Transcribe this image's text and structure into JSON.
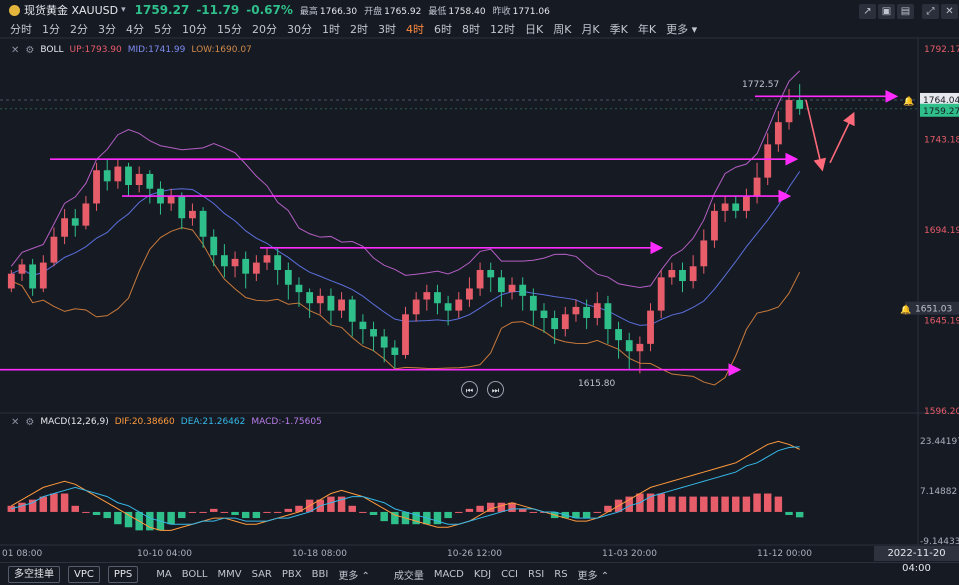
{
  "header": {
    "name": "现货黄金 XAUUSD",
    "price": "1759.27",
    "change": "-11.79",
    "change_pct": "-0.67%",
    "high_label": "最高",
    "high": "1766.30",
    "open_label": "开盘",
    "open": "1765.92",
    "low_label": "最低",
    "low": "1758.40",
    "prev_label": "昨收",
    "prev": "1771.06"
  },
  "timeframes": [
    "分时",
    "1分",
    "2分",
    "3分",
    "4分",
    "5分",
    "10分",
    "15分",
    "20分",
    "30分",
    "1时",
    "2时",
    "3时",
    "4时",
    "6时",
    "8时",
    "12时",
    "日K",
    "周K",
    "月K",
    "季K",
    "年K",
    "更多"
  ],
  "active_timeframe": "4时",
  "boll": {
    "label": "BOLL",
    "up": "UP:1793.90",
    "mid": "MID:1741.99",
    "low": "LOW:1690.07"
  },
  "macd": {
    "label": "MACD(12,26,9)",
    "dif": "DIF:20.38660",
    "dea": "DEA:21.26462",
    "macd": "MACD:-1.75605"
  },
  "main_axis": [
    "1792.17",
    "1743.18",
    "1694.19",
    "1645.19",
    "1596.20"
  ],
  "macd_axis": [
    "23.44197",
    "7.14882",
    "-9.14433"
  ],
  "price_tags": {
    "current": "1759.27",
    "line": "1764.04",
    "alert": "1651.03"
  },
  "annotations": {
    "high": "1772.57",
    "low": "1615.80"
  },
  "time_labels": [
    "01 08:00",
    "10-10 04:00",
    "10-18 08:00",
    "10-26 12:00",
    "11-03 20:00",
    "11-12 00:00"
  ],
  "crosshair_date": "2022-11-20 04:00",
  "bottom": {
    "buttons": [
      "多空挂单",
      "VPC",
      "PPS"
    ],
    "main_tabs": [
      "MA",
      "BOLL",
      "MMV",
      "SAR",
      "PBX",
      "BBI",
      "更多"
    ],
    "sub_tabs": [
      "成交量",
      "MACD",
      "KDJ",
      "CCI",
      "RSI",
      "RS",
      "更多"
    ]
  },
  "colors": {
    "up": "#e85d6a",
    "down": "#2fbf8a",
    "mid": "#5b6fdc",
    "upper": "#b45fc4",
    "lower": "#c87a3b",
    "trend": "#ff2bff",
    "dif": "#ff9a3d",
    "dea": "#35b8e8"
  },
  "chart_data": {
    "type": "candlestick",
    "main": {
      "yrange": [
        1596.2,
        1792.17
      ],
      "ticks": [
        1792.17,
        1743.18,
        1694.19,
        1645.19,
        1596.2
      ],
      "candles": [
        [
          1662,
          1670,
          1660,
          1672
        ],
        [
          1670,
          1675,
          1666,
          1678
        ],
        [
          1675,
          1662,
          1658,
          1678
        ],
        [
          1662,
          1676,
          1660,
          1680
        ],
        [
          1676,
          1690,
          1674,
          1695
        ],
        [
          1690,
          1700,
          1686,
          1705
        ],
        [
          1700,
          1696,
          1690,
          1705
        ],
        [
          1696,
          1708,
          1694,
          1712
        ],
        [
          1708,
          1726,
          1704,
          1730
        ],
        [
          1726,
          1720,
          1715,
          1732
        ],
        [
          1720,
          1728,
          1716,
          1732
        ],
        [
          1728,
          1718,
          1712,
          1730
        ],
        [
          1718,
          1724,
          1714,
          1728
        ],
        [
          1724,
          1716,
          1708,
          1726
        ],
        [
          1716,
          1708,
          1702,
          1720
        ],
        [
          1708,
          1712,
          1704,
          1716
        ],
        [
          1712,
          1700,
          1694,
          1714
        ],
        [
          1700,
          1704,
          1696,
          1708
        ],
        [
          1704,
          1690,
          1684,
          1706
        ],
        [
          1690,
          1680,
          1674,
          1694
        ],
        [
          1680,
          1674,
          1668,
          1686
        ],
        [
          1674,
          1678,
          1668,
          1682
        ],
        [
          1678,
          1670,
          1662,
          1682
        ],
        [
          1670,
          1676,
          1666,
          1680
        ],
        [
          1676,
          1680,
          1672,
          1684
        ],
        [
          1680,
          1672,
          1664,
          1684
        ],
        [
          1672,
          1664,
          1656,
          1676
        ],
        [
          1664,
          1660,
          1652,
          1668
        ],
        [
          1660,
          1654,
          1646,
          1662
        ],
        [
          1654,
          1658,
          1648,
          1662
        ],
        [
          1658,
          1650,
          1642,
          1662
        ],
        [
          1650,
          1656,
          1646,
          1660
        ],
        [
          1656,
          1644,
          1636,
          1658
        ],
        [
          1644,
          1640,
          1632,
          1648
        ],
        [
          1640,
          1636,
          1628,
          1644
        ],
        [
          1636,
          1630,
          1622,
          1640
        ],
        [
          1630,
          1626,
          1618,
          1634
        ],
        [
          1626,
          1648,
          1624,
          1652
        ],
        [
          1648,
          1656,
          1644,
          1660
        ],
        [
          1656,
          1660,
          1650,
          1664
        ],
        [
          1660,
          1654,
          1648,
          1664
        ],
        [
          1654,
          1650,
          1642,
          1658
        ],
        [
          1650,
          1656,
          1646,
          1660
        ],
        [
          1656,
          1662,
          1652,
          1668
        ],
        [
          1662,
          1672,
          1658,
          1676
        ],
        [
          1672,
          1668,
          1660,
          1676
        ],
        [
          1668,
          1660,
          1652,
          1672
        ],
        [
          1660,
          1664,
          1656,
          1668
        ],
        [
          1664,
          1658,
          1650,
          1668
        ],
        [
          1658,
          1650,
          1642,
          1662
        ],
        [
          1650,
          1646,
          1638,
          1654
        ],
        [
          1646,
          1640,
          1632,
          1650
        ],
        [
          1640,
          1648,
          1636,
          1652
        ],
        [
          1648,
          1652,
          1644,
          1656
        ],
        [
          1652,
          1646,
          1640,
          1656
        ],
        [
          1646,
          1654,
          1642,
          1660
        ],
        [
          1654,
          1640,
          1632,
          1658
        ],
        [
          1640,
          1634,
          1624,
          1644
        ],
        [
          1634,
          1628,
          1618,
          1638
        ],
        [
          1628,
          1632,
          1616,
          1636
        ],
        [
          1632,
          1650,
          1628,
          1654
        ],
        [
          1650,
          1668,
          1646,
          1672
        ],
        [
          1668,
          1672,
          1664,
          1676
        ],
        [
          1672,
          1666,
          1660,
          1676
        ],
        [
          1666,
          1674,
          1662,
          1680
        ],
        [
          1674,
          1688,
          1670,
          1694
        ],
        [
          1688,
          1704,
          1684,
          1708
        ],
        [
          1704,
          1708,
          1698,
          1712
        ],
        [
          1708,
          1704,
          1700,
          1712
        ],
        [
          1704,
          1712,
          1700,
          1716
        ],
        [
          1712,
          1722,
          1708,
          1730
        ],
        [
          1722,
          1740,
          1718,
          1746
        ],
        [
          1740,
          1752,
          1736,
          1758
        ],
        [
          1752,
          1764,
          1748,
          1770
        ],
        [
          1764,
          1759.27,
          1756,
          1772.57
        ]
      ]
    },
    "macd": {
      "yrange": [
        -9.14433,
        23.44197
      ],
      "ticks": [
        23.44197,
        7.14882,
        -9.14433
      ],
      "dif": [
        2,
        4,
        6,
        8,
        9,
        10,
        9,
        7,
        5,
        3,
        1,
        -1,
        -3,
        -5,
        -6,
        -6,
        -5,
        -4,
        -3,
        -2,
        -2,
        -3,
        -4,
        -4,
        -3,
        -2,
        -1,
        0,
        2,
        4,
        6,
        7,
        6,
        5,
        3,
        1,
        -1,
        -2,
        -3,
        -4,
        -5,
        -5,
        -4,
        -3,
        -1,
        1,
        2,
        3,
        2,
        1,
        0,
        -1,
        -2,
        -3,
        -3,
        -2,
        0,
        2,
        4,
        6,
        8,
        9,
        10,
        11,
        12,
        13,
        14,
        15,
        16,
        18,
        20,
        22,
        23,
        22,
        20.39
      ],
      "dea": [
        1,
        2,
        3,
        5,
        6,
        7,
        8,
        7,
        6,
        5,
        3,
        2,
        0,
        -2,
        -3,
        -4,
        -4,
        -4,
        -3,
        -3,
        -2,
        -2,
        -3,
        -3,
        -3,
        -2,
        -2,
        -1,
        0,
        2,
        3,
        4,
        5,
        5,
        4,
        3,
        1,
        0,
        -1,
        -2,
        -3,
        -4,
        -4,
        -3,
        -2,
        -1,
        0,
        1,
        1,
        1,
        0,
        0,
        -1,
        -2,
        -2,
        -2,
        -1,
        0,
        2,
        3,
        5,
        6,
        7,
        8,
        9,
        10,
        11,
        12,
        13,
        15,
        16,
        18,
        20,
        21,
        21.26
      ],
      "hist": [
        2,
        3,
        4,
        5,
        6,
        6,
        2,
        0,
        -1,
        -2,
        -4,
        -5,
        -6,
        -6,
        -6,
        -4,
        -2,
        0,
        0,
        1,
        0,
        -1,
        -2,
        -2,
        0,
        0,
        1,
        2,
        4,
        4,
        5,
        5,
        2,
        0,
        -1,
        -3,
        -4,
        -4,
        -4,
        -4,
        -4,
        -2,
        0,
        1,
        2,
        3,
        3,
        3,
        1,
        0,
        0,
        -2,
        -2,
        -2,
        -2,
        0,
        2,
        4,
        5,
        6,
        6,
        6,
        5,
        5,
        5,
        5,
        5,
        5,
        5,
        5,
        6,
        6,
        5,
        -1,
        -1.76
      ]
    }
  }
}
